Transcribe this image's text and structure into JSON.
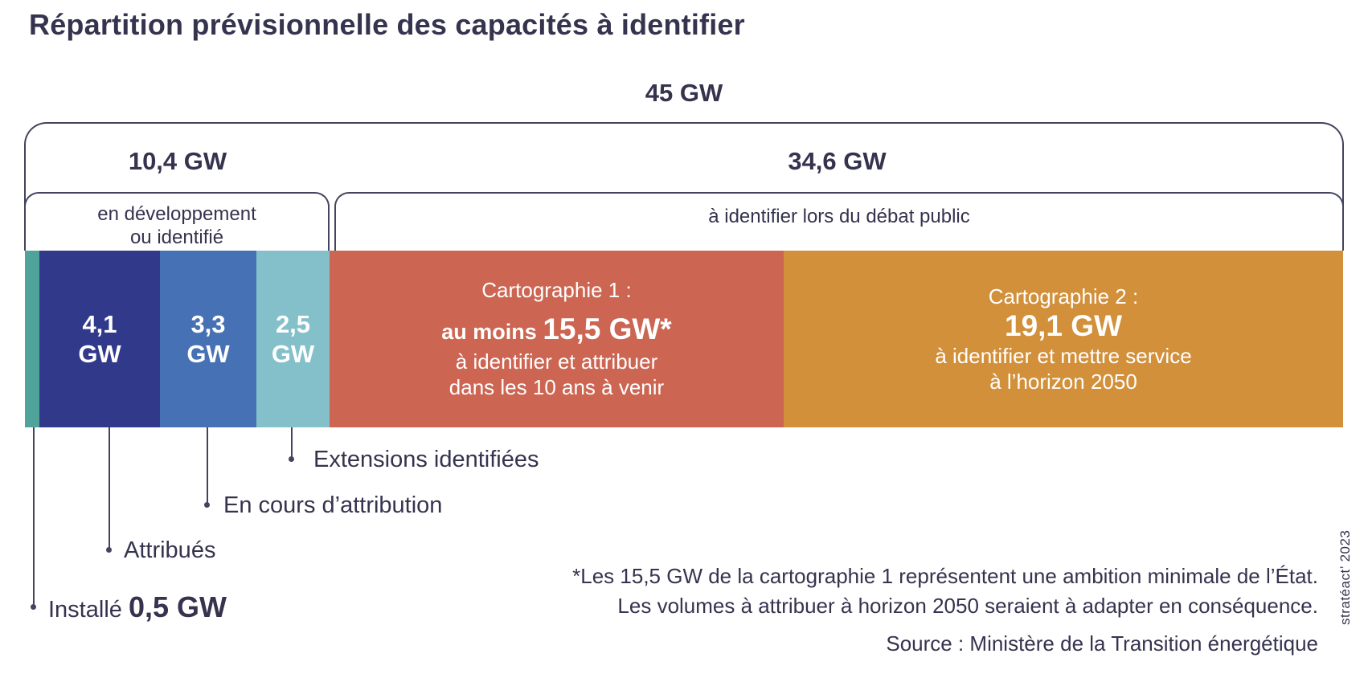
{
  "title": "Répartition prévisionnelle des capacités à identifier",
  "bracket": {
    "total": "45 GW",
    "left_total": "10,4 GW",
    "right_total": "34,6 GW",
    "left_caption": [
      "en développement",
      "ou identifié"
    ],
    "right_caption": "à identifier lors du débat public"
  },
  "bar": {
    "seg_attribues": {
      "line1": "4,1",
      "line2": "GW"
    },
    "seg_encours": {
      "line1": "3,3",
      "line2": "GW"
    },
    "seg_extensions": {
      "line1": "2,5",
      "line2": "GW"
    },
    "carto1": {
      "title": "Cartographie 1 :",
      "bold_prefix": "au moins ",
      "bold_value": "15,5 GW*",
      "line3": "à identifier et attribuer",
      "line4": "dans les 10 ans à venir"
    },
    "carto2": {
      "title": "Cartographie 2 :",
      "value": "19,1 GW",
      "line3": "à identifier et mettre service",
      "line4": "à l’horizon 2050"
    }
  },
  "legend": {
    "extensions": "Extensions identifiées",
    "encours": "En cours d’attribution",
    "attribues": "Attribués",
    "installe_label": "Installé ",
    "installe_value": "0,5 GW"
  },
  "footnote": [
    "*Les 15,5 GW de la cartographie 1 représentent une ambition minimale de l’État.",
    "Les volumes à attribuer à horizon 2050 seraient à adapter en conséquence."
  ],
  "source": "Source : Ministère de la Transition énergétique",
  "credit": "stratéact’ 2023",
  "colors": {
    "text": "#35334e",
    "border": "#44445e",
    "installe": "#4fa39a",
    "attribues": "#31398a",
    "encours": "#4671b4",
    "extensions": "#84c0ca",
    "carto1": "#cc6552",
    "carto2": "#d2903a"
  },
  "chart_data": {
    "type": "bar",
    "orientation": "horizontal-stacked",
    "title": "Répartition prévisionnelle des capacités à identifier",
    "unit": "GW",
    "total_gw": 45,
    "groups": [
      {
        "label": "en développement ou identifié",
        "total_gw": 10.4
      },
      {
        "label": "à identifier lors du débat public",
        "total_gw": 34.6
      }
    ],
    "segments": [
      {
        "name": "Installé",
        "value_gw": 0.5,
        "color": "#4fa39a",
        "group": "en développement ou identifié"
      },
      {
        "name": "Attribués",
        "value_gw": 4.1,
        "color": "#31398a",
        "group": "en développement ou identifié"
      },
      {
        "name": "En cours d’attribution",
        "value_gw": 3.3,
        "color": "#4671b4",
        "group": "en développement ou identifié"
      },
      {
        "name": "Extensions identifiées",
        "value_gw": 2.5,
        "color": "#84c0ca",
        "group": "en développement ou identifié"
      },
      {
        "name": "Cartographie 1 : au moins 15,5 GW* à identifier et attribuer dans les 10 ans à venir",
        "value_gw": 15.5,
        "color": "#cc6552",
        "group": "à identifier lors du débat public"
      },
      {
        "name": "Cartographie 2 : 19,1 GW à identifier et mettre service à l’horizon 2050",
        "value_gw": 19.1,
        "color": "#d2903a",
        "group": "à identifier lors du débat public"
      }
    ],
    "annotations": [
      "*Les 15,5 GW de la cartographie 1 représentent une ambition minimale de l’État. Les volumes à attribuer à horizon 2050 seraient à adapter en conséquence.",
      "Source : Ministère de la Transition énergétique"
    ],
    "legend_position": "below-left",
    "grid": false
  }
}
